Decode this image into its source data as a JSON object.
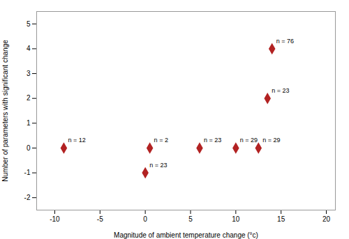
{
  "chart_data": {
    "type": "scatter",
    "x": [
      -9,
      0.5,
      0,
      6,
      10,
      12.5,
      13.5,
      14
    ],
    "values": [
      0,
      0,
      -1,
      0,
      0,
      0,
      2,
      4
    ],
    "labels": [
      "n = 12",
      "n = 2",
      "n = 23",
      "n = 23",
      "n = 29",
      "n = 29",
      "n = 23",
      "n = 76"
    ],
    "color": "#B22222",
    "marker": "diamond",
    "xlabel": "Magnitude of ambient temperature change (°c)",
    "ylabel": "Number of parameters with significant change",
    "xlim": [
      -12,
      21
    ],
    "ylim": [
      -2.5,
      5.5
    ],
    "xticks": [
      -10,
      -5,
      0,
      5,
      10,
      15,
      20
    ],
    "yticks": [
      -2,
      -1,
      0,
      1,
      2,
      3,
      4,
      5
    ]
  }
}
